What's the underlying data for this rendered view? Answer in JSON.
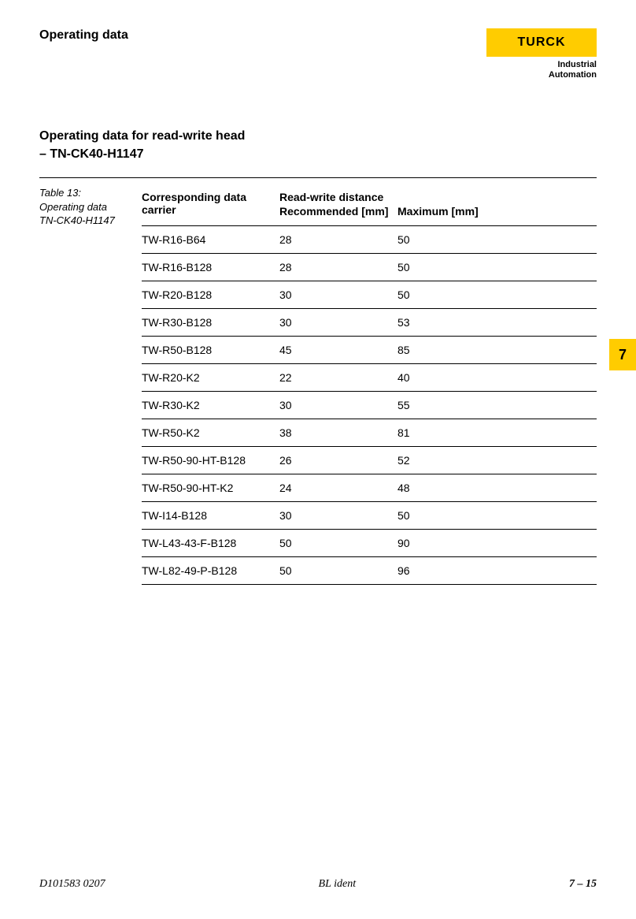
{
  "header": {
    "title": "Operating data",
    "logo_text": "TURCK",
    "logo_sub_line1": "Industrial",
    "logo_sub_line2": "Automation"
  },
  "section": {
    "title_line1": "Operating data for read-write head",
    "title_line2": "– TN-CK40-H1147"
  },
  "caption": {
    "line1": "Table 13:",
    "line2": "Operating data",
    "line3": "TN-CK40-H1147"
  },
  "table": {
    "col1_header": "Corresponding data carrier",
    "col_span_header": "Read-write distance",
    "col2_header": "Recommended [mm]",
    "col3_header": "Maximum [mm]",
    "rows": [
      {
        "c": "TW-R16-B64",
        "r": "28",
        "m": "50"
      },
      {
        "c": "TW-R16-B128",
        "r": "28",
        "m": "50"
      },
      {
        "c": "TW-R20-B128",
        "r": "30",
        "m": "50"
      },
      {
        "c": "TW-R30-B128",
        "r": "30",
        "m": "53"
      },
      {
        "c": "TW-R50-B128",
        "r": "45",
        "m": "85"
      },
      {
        "c": "TW-R20-K2",
        "r": "22",
        "m": "40"
      },
      {
        "c": "TW-R30-K2",
        "r": "30",
        "m": "55"
      },
      {
        "c": "TW-R50-K2",
        "r": "38",
        "m": "81"
      },
      {
        "c": "TW-R50-90-HT-B128",
        "r": "26",
        "m": "52"
      },
      {
        "c": "TW-R50-90-HT-K2",
        "r": "24",
        "m": "48"
      },
      {
        "c": "TW-I14-B128",
        "r": "30",
        "m": "50"
      },
      {
        "c": "TW-L43-43-F-B128",
        "r": "50",
        "m": "90"
      },
      {
        "c": "TW-L82-49-P-B128",
        "r": "50",
        "m": "96"
      }
    ]
  },
  "tab": {
    "number": "7"
  },
  "footer": {
    "left": "D101583  0207",
    "center": "BL ident",
    "right": "7 – 15"
  },
  "colors": {
    "accent": "#ffcc00",
    "text": "#000000",
    "bg": "#ffffff",
    "border": "#000000"
  }
}
